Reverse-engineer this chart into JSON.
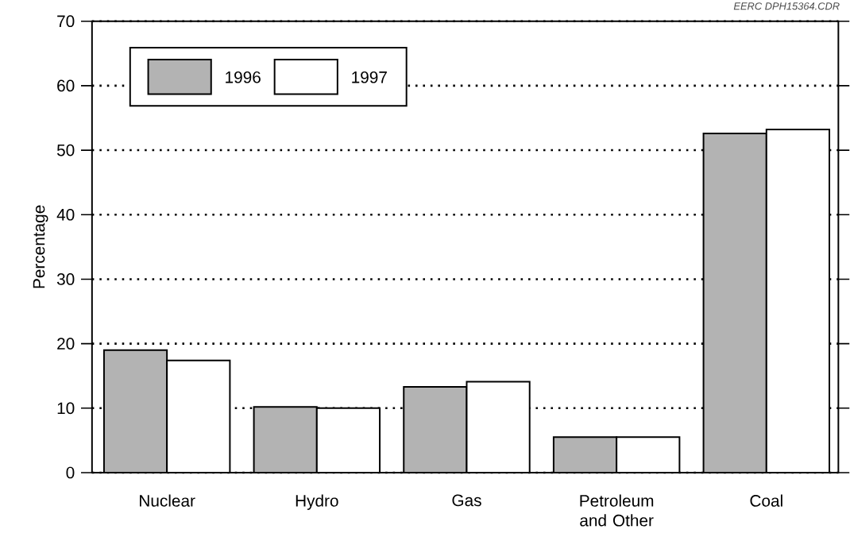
{
  "chart_data": {
    "type": "bar",
    "ylabel": "Percentage",
    "categories": [
      "Nuclear",
      "Hydro",
      "Gas",
      "Petroleum and Other",
      "Coal"
    ],
    "series": [
      {
        "name": "1996",
        "color": "#b3b3b3",
        "values": [
          19.0,
          10.2,
          13.3,
          5.5,
          52.6
        ]
      },
      {
        "name": "1997",
        "color": "#ffffff",
        "values": [
          17.4,
          10.0,
          14.1,
          5.5,
          53.2
        ]
      }
    ],
    "ylim": [
      0,
      70
    ],
    "yticks": [
      0,
      10,
      20,
      30,
      40,
      50,
      60,
      70
    ],
    "grid": "y",
    "legend": "top left",
    "annotations": [
      "EERC DPH15364.CDR"
    ]
  }
}
